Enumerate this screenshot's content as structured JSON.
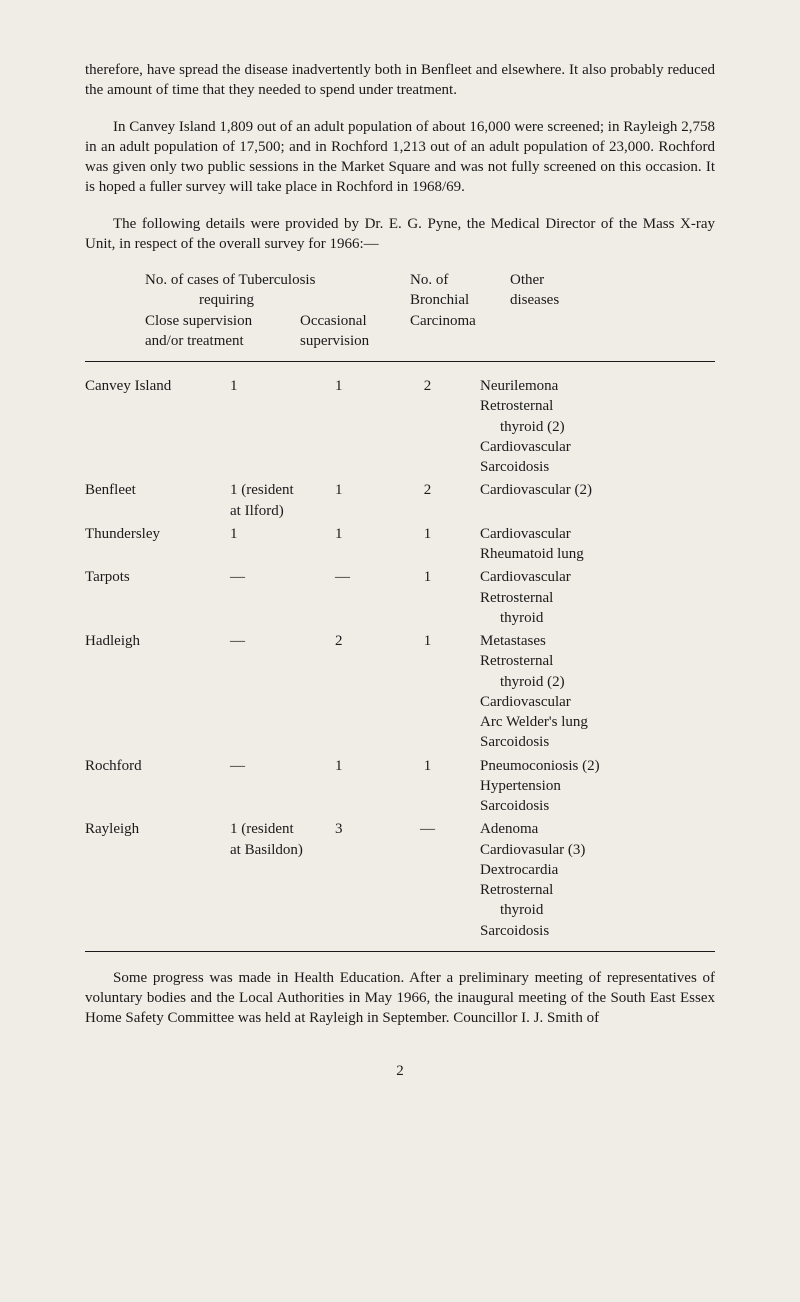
{
  "paragraphs": {
    "p1": "therefore, have spread the disease inadvertently both in Benfleet and elsewhere. It also probably reduced the amount of time that they needed to spend under treatment.",
    "p2": "In Canvey Island 1,809 out of an adult population of about 16,000 were screened; in Rayleigh 2,758 in an adult population of 17,500; and in Rochford 1,213 out of an adult population of 23,000. Rochford was given only two public sessions in the Market Square and was not fully screened on this occasion. It is hoped a fuller survey will take place in Rochford in 1968/69.",
    "p3": "The following details were provided by Dr. E. G. Pyne, the Medical Director of the Mass X-ray Unit, in respect of the overall survey for 1966:—"
  },
  "table_header": {
    "col1_line1": "No. of cases of Tuberculosis",
    "col1_line2": "requiring",
    "col1_sub1": "Close supervision",
    "col1_sub2": "and/or treatment",
    "col1_sub3": "Occasional",
    "col1_sub4": "supervision",
    "col2_line1": "No. of",
    "col2_line2": "Bronchial",
    "col2_line3": "Carcinoma",
    "col3_line1": "Other",
    "col3_line2": "diseases"
  },
  "rows": [
    {
      "location": "Canvey Island",
      "close": "1",
      "occasional": "1",
      "bronchial": "2",
      "diseases": [
        "Neurilemona",
        "Retrosternal",
        "  thyroid (2)",
        "Cardiovascular",
        "Sarcoidosis"
      ]
    },
    {
      "location": "Benfleet",
      "close": "1 (resident",
      "close_sub": "at Ilford)",
      "occasional": "1",
      "bronchial": "2",
      "diseases": [
        "Cardiovascular (2)"
      ]
    },
    {
      "location": "Thundersley",
      "close": "1",
      "occasional": "1",
      "bronchial": "1",
      "diseases": [
        "Cardiovascular",
        "Rheumatoid lung"
      ]
    },
    {
      "location": "Tarpots",
      "close": "—",
      "occasional": "—",
      "bronchial": "1",
      "diseases": [
        "Cardiovascular",
        "Retrosternal",
        "  thyroid"
      ]
    },
    {
      "location": "Hadleigh",
      "close": "—",
      "occasional": "2",
      "bronchial": "1",
      "diseases": [
        "Metastases",
        "Retrosternal",
        "  thyroid (2)",
        "Cardiovascular",
        "Arc Welder's lung",
        "Sarcoidosis"
      ]
    },
    {
      "location": "Rochford",
      "close": "—",
      "occasional": "1",
      "bronchial": "1",
      "diseases": [
        "Pneumoconiosis (2)",
        "Hypertension",
        "Sarcoidosis"
      ]
    },
    {
      "location": "Rayleigh",
      "close": "1 (resident",
      "close_sub": "at Basildon)",
      "occasional": "3",
      "bronchial": "—",
      "diseases": [
        "Adenoma",
        "Cardiovasular (3)",
        "Dextrocardia",
        "Retrosternal",
        "  thyroid",
        "Sarcoidosis"
      ]
    }
  ],
  "footer_paragraph": "Some progress was made in Health Education. After a preliminary meeting of representatives of voluntary bodies and the Local Authorities in May 1966, the inaugural meeting of the South East Essex Home Safety Committee was held at Rayleigh in September. Councillor I. J. Smith of",
  "page_number": "2"
}
